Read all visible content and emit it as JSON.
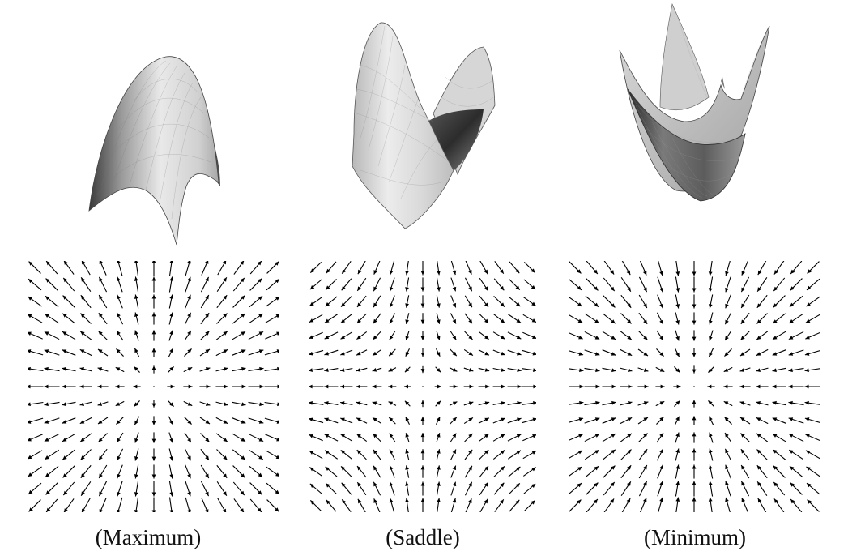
{
  "panels": [
    {
      "caption": "(Maximum)",
      "surface": "paraboloid-maximum",
      "field": "gradient-outward-from-peak"
    },
    {
      "caption": "(Saddle)",
      "surface": "saddle",
      "field": "gradient-saddle"
    },
    {
      "caption": "(Minimum)",
      "surface": "paraboloid-minimum",
      "field": "gradient-inward-to-bowl"
    }
  ],
  "colors": {
    "surface_light": "#f2f2f2",
    "surface_mid": "#bdbdbd",
    "surface_dark": "#2a2a2a",
    "arrow": "#000000"
  },
  "grid_size": 15
}
